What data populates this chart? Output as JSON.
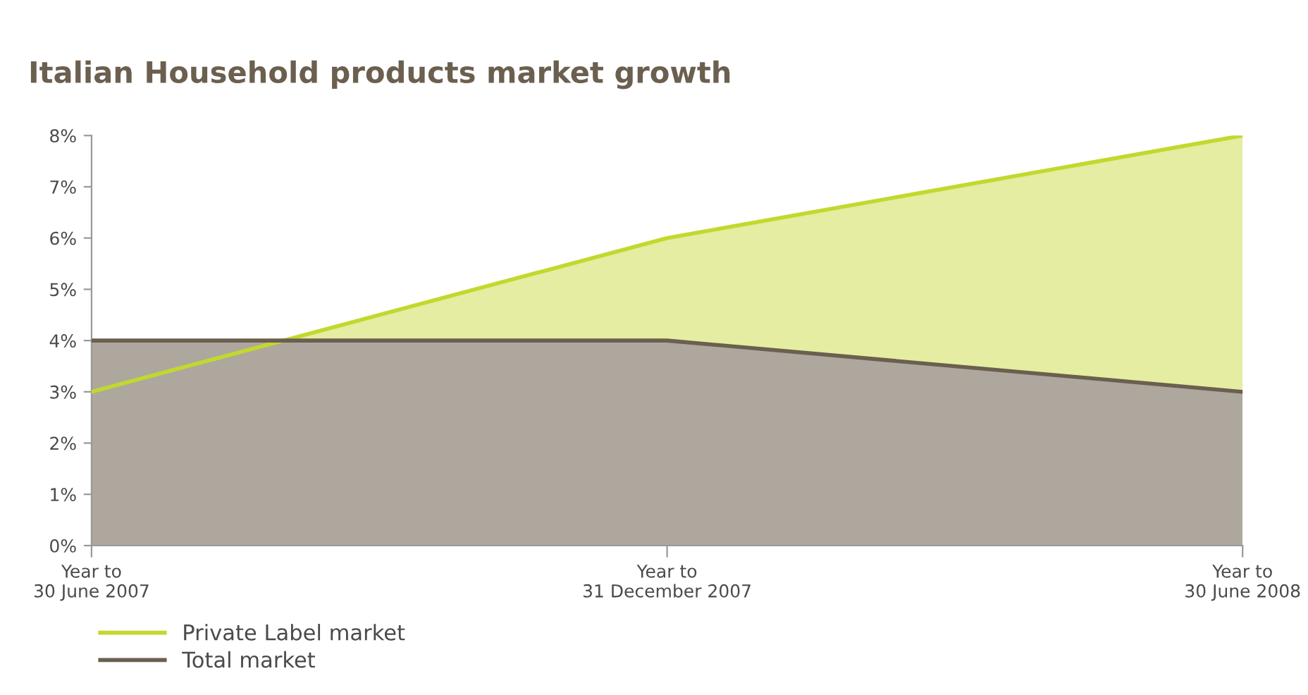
{
  "chart_data": {
    "type": "area",
    "title": "Italian Household products market growth",
    "categories": [
      "Year to\n30 June 2007",
      "Year to\n31 December 2007",
      "Year to\n30 June 2008"
    ],
    "series": [
      {
        "name": "Private Label market",
        "color": "#c3d82e",
        "values": [
          3,
          6,
          8
        ]
      },
      {
        "name": "Total market",
        "color": "#6b5f4f",
        "values": [
          4,
          4,
          3
        ]
      }
    ],
    "ylim": [
      0,
      8
    ],
    "yticks": [
      {
        "value": 0,
        "label": "0%"
      },
      {
        "value": 1,
        "label": "1%"
      },
      {
        "value": 2,
        "label": "2%"
      },
      {
        "value": 3,
        "label": "3%"
      },
      {
        "value": 4,
        "label": "4%"
      },
      {
        "value": 5,
        "label": "5%"
      },
      {
        "value": 6,
        "label": "6%"
      },
      {
        "value": 7,
        "label": "7%"
      },
      {
        "value": 8,
        "label": "8%"
      }
    ],
    "grid": false,
    "legend": "bottom left"
  }
}
